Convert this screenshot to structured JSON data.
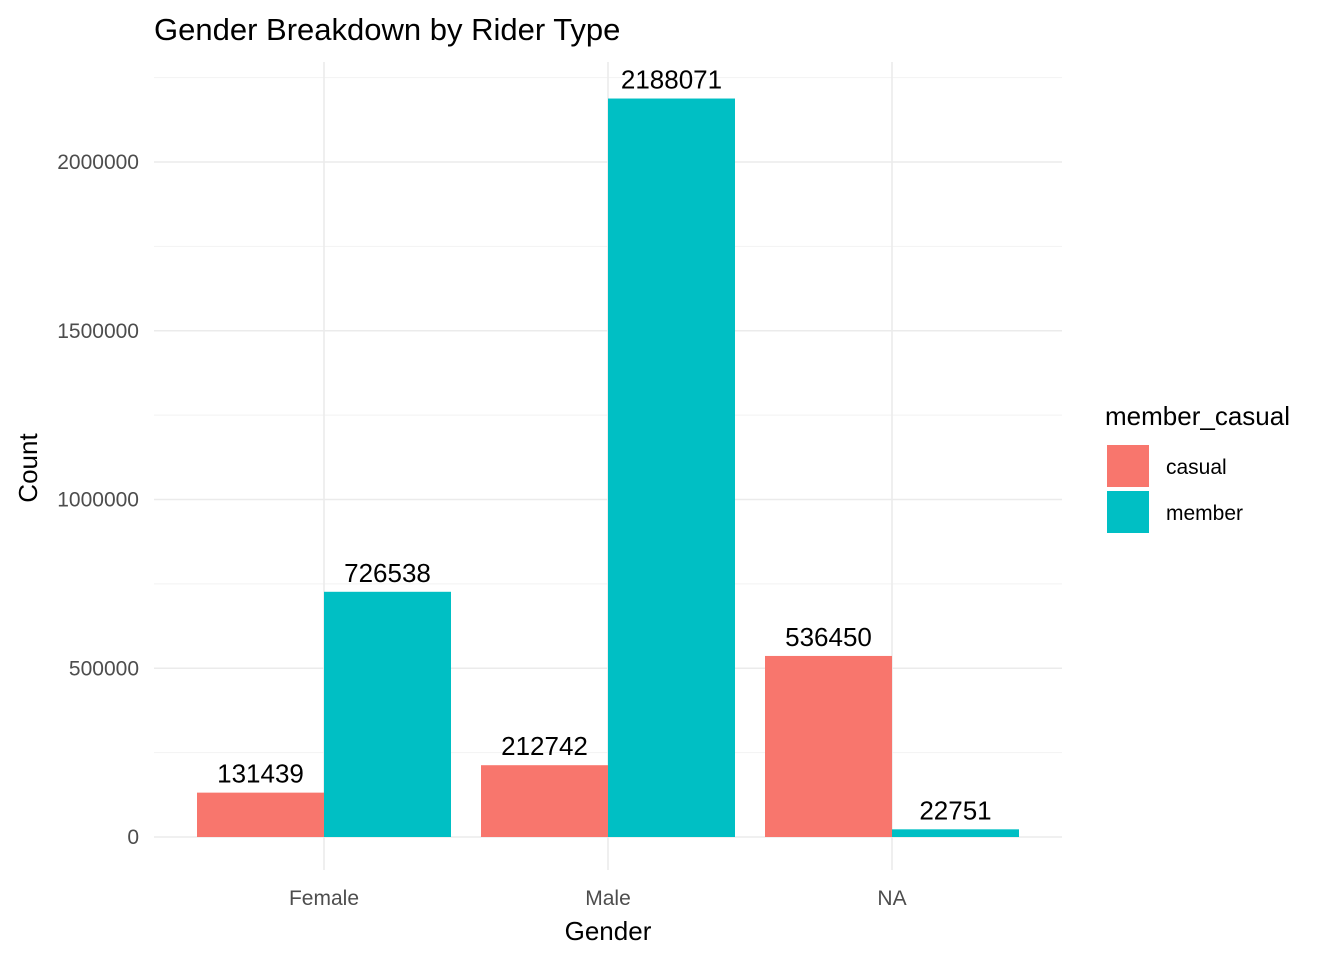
{
  "chart_data": {
    "type": "bar",
    "title": "Gender Breakdown by Rider Type",
    "xlabel": "Gender",
    "ylabel": "Count",
    "categories": [
      "Female",
      "Male",
      "NA"
    ],
    "series": [
      {
        "name": "casual",
        "color": "#F8766D",
        "values": [
          131439,
          212742,
          536450
        ]
      },
      {
        "name": "member",
        "color": "#00BFC4",
        "values": [
          726538,
          2188071,
          22751
        ]
      }
    ],
    "ylim": [
      0,
      2300000
    ],
    "yticks": [
      0,
      500000,
      1000000,
      1500000,
      2000000
    ],
    "ytick_labels": [
      "0",
      "500000",
      "1000000",
      "1500000",
      "2000000"
    ],
    "grid": true,
    "legend": {
      "title": "member_casual",
      "position": "right",
      "entries": [
        "casual",
        "member"
      ]
    }
  }
}
